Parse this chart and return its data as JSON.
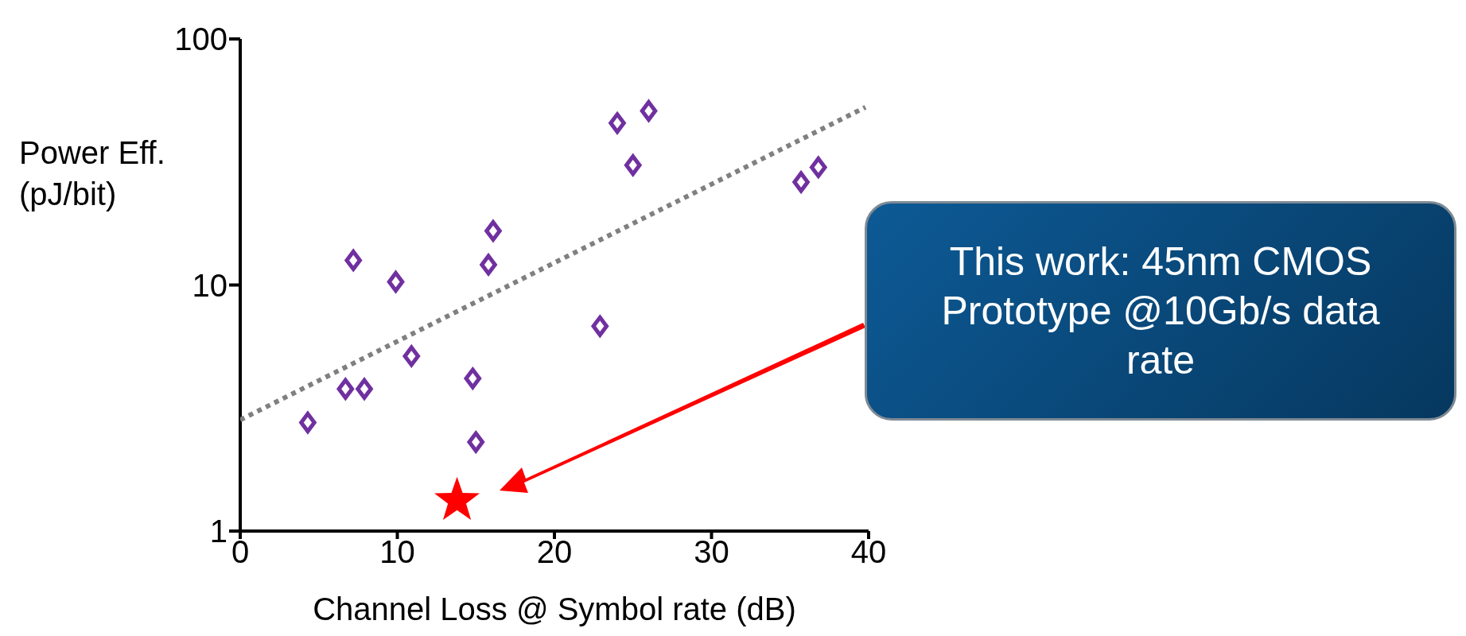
{
  "chart_data": {
    "type": "scatter",
    "xlabel": "Channel Loss @ Symbol rate (dB)",
    "ylabel": "Power Eff. (pJ/bit)",
    "log": "y",
    "xlim": [
      0,
      40
    ],
    "xticks": [
      0,
      10,
      20,
      30,
      40
    ],
    "ylim": [
      1,
      100
    ],
    "yticks": [
      1,
      10,
      100
    ],
    "series": [
      {
        "marker": "diamond",
        "color": "#7030a0",
        "x": [
          4.3,
          6.7,
          7.9,
          7.2,
          9.9,
          10.9,
          14.8,
          15.0,
          15.8,
          16.1,
          22.9,
          24.0,
          25.0,
          26.0,
          35.7,
          36.8
        ],
        "values": [
          2.76,
          3.78,
          3.78,
          12.6,
          10.3,
          5.14,
          4.17,
          2.3,
          12.1,
          16.6,
          6.8,
          45.5,
          30.7,
          51,
          26.2,
          30.1
        ]
      },
      {
        "type": "line",
        "marker": "none",
        "line_style": "dotted",
        "color": "#808080",
        "x": [
          0,
          39.8
        ],
        "values": [
          2.83,
          52.8
        ]
      },
      {
        "marker": "star",
        "color": "#ff0000",
        "x": [
          13.8
        ],
        "values": [
          1.33
        ]
      }
    ],
    "annotations": [
      "This work: 45nm CMOS Prototype @10Gb/s data rate"
    ]
  }
}
